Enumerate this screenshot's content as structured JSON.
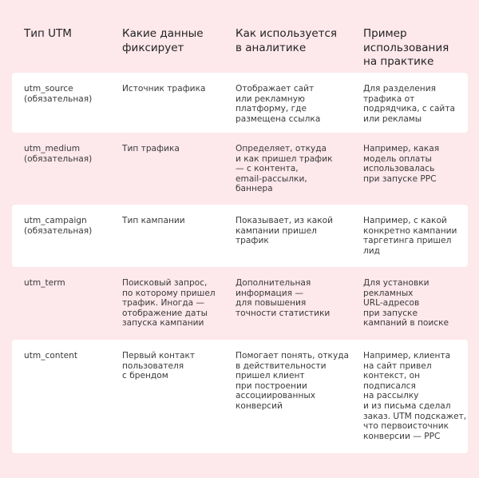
{
  "header": [
    "Тип UTM",
    "Какие данные\nфиксирует",
    "Как используется\nв аналитике",
    "Пример\nиспользования\nна  практике"
  ],
  "rows": [
    [
      "utm_source\n(обязательная)",
      "Источник трафика",
      "Отображает сайт\nили рекламную\nплатформу, где\nразмещена ссылка",
      "Для разделения\nтрафика от\nподрядчика, с сайта\nили рекламы"
    ],
    [
      "utm_medium\n(обязательная)",
      "Тип трафика",
      "Определяет, откуда\nи как пришел трафик\n— с контента,\nemail-рассылки,\nбаннера",
      "Например, какая\nмодель оплаты\nиспользовалась\nпри запуске PPC"
    ],
    [
      "utm_campaign\n(обязательная)",
      "Тип кампании",
      "Показывает, из какой\nкампании пришел\nтрафик",
      "Например, с какой\nконкретно кампании\nтаргетинга пришел\nлид"
    ],
    [
      "utm_term",
      "Поисковый запрос,\nпо которому пришел\n трафик. Иногда  —\nотображение даты\nзапуска кампании",
      "Дополнительная\nинформация  —\nдля повышения\nточности статистики",
      "Для установки\nрекламных\nURL-адресов\nпри запуске\nкампаний в поиске"
    ],
    [
      "utm_content",
      "Первый контакт\nпользователя\nс брендом",
      "Помогает понять, откуда\nв действительности\nпришел клиент\nпри построении\nассоциированных\nконверсий",
      "Например, клиента\nна сайт привел\nконтекст, он\nподписался\nна рассылку\nи из письма сделал\nзаказ. UTM подскажет,\nчто первоисточник\nконверсии — PPC"
    ]
  ],
  "colors": {
    "background": "#fde8ec",
    "row_highlight": "#ffffff"
  }
}
